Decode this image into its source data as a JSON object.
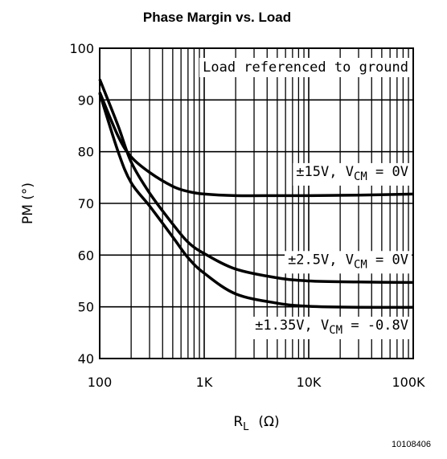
{
  "chart_data": {
    "type": "line",
    "title": "Phase Margin vs. Load",
    "ylabel": "PM (°)",
    "xlabel": {
      "main": "R",
      "sub": "L",
      "unit": "(Ω)"
    },
    "x_scale": "log",
    "xlim": [
      100,
      100000
    ],
    "ylim": [
      40,
      100
    ],
    "x_ticks": [
      {
        "value": 100,
        "label": "100"
      },
      {
        "value": 1000,
        "label": "1K"
      },
      {
        "value": 10000,
        "label": "10K"
      },
      {
        "value": 100000,
        "label": "100K"
      }
    ],
    "y_ticks": [
      {
        "value": 40,
        "label": "40"
      },
      {
        "value": 50,
        "label": "50"
      },
      {
        "value": 60,
        "label": "60"
      },
      {
        "value": 70,
        "label": "70"
      },
      {
        "value": 80,
        "label": "80"
      },
      {
        "value": 90,
        "label": "90"
      },
      {
        "value": 100,
        "label": "100"
      }
    ],
    "grid": true,
    "annotation": "Load referenced to ground",
    "series": [
      {
        "label": {
          "main": "±15V, V",
          "sub": "CM",
          "tail": " = 0V"
        },
        "label_anchor": {
          "x": 30000,
          "y": 75.3
        },
        "points": [
          [
            100,
            91.5
          ],
          [
            150,
            83
          ],
          [
            200,
            79
          ],
          [
            300,
            76
          ],
          [
            500,
            73.3
          ],
          [
            700,
            72.3
          ],
          [
            1000,
            71.8
          ],
          [
            2000,
            71.5
          ],
          [
            5000,
            71.5
          ],
          [
            10000,
            71.5
          ],
          [
            30000,
            71.6
          ],
          [
            100000,
            71.8
          ]
        ]
      },
      {
        "label": {
          "main": "±2.5V, V",
          "sub": "CM",
          "tail": " = 0V"
        },
        "label_anchor": {
          "x": 30000,
          "y": 58.3
        },
        "points": [
          [
            100,
            94
          ],
          [
            150,
            85
          ],
          [
            200,
            78
          ],
          [
            300,
            72
          ],
          [
            500,
            66
          ],
          [
            700,
            62.5
          ],
          [
            1000,
            60.3
          ],
          [
            2000,
            57.3
          ],
          [
            5000,
            55.6
          ],
          [
            10000,
            55
          ],
          [
            30000,
            54.8
          ],
          [
            100000,
            54.7
          ]
        ]
      },
      {
        "label": {
          "main": "±1.35V, V",
          "sub": "CM",
          "tail": " = -0.8V"
        },
        "label_anchor": {
          "x": 30000,
          "y": 45.6
        },
        "points": [
          [
            100,
            91.3
          ],
          [
            150,
            80
          ],
          [
            200,
            74
          ],
          [
            300,
            69.5
          ],
          [
            500,
            63.5
          ],
          [
            700,
            59.5
          ],
          [
            1000,
            56.5
          ],
          [
            2000,
            52.5
          ],
          [
            5000,
            50.7
          ],
          [
            10000,
            50.1
          ],
          [
            30000,
            49.9
          ],
          [
            100000,
            49.9
          ]
        ]
      }
    ]
  },
  "figure_id": "10108406"
}
